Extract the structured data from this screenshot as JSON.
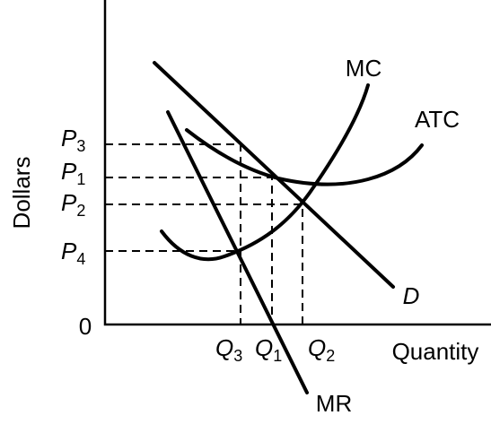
{
  "axes": {
    "y_label": "Dollars",
    "x_label": "Quantity",
    "origin": "0"
  },
  "curves": {
    "mc": "MC",
    "atc": "ATC",
    "demand": "D",
    "mr": "MR"
  },
  "prices": [
    {
      "letter": "P",
      "sub": "3"
    },
    {
      "letter": "P",
      "sub": "1"
    },
    {
      "letter": "P",
      "sub": "2"
    },
    {
      "letter": "P",
      "sub": "4"
    }
  ],
  "quantities": [
    {
      "letter": "Q",
      "sub": "3"
    },
    {
      "letter": "Q",
      "sub": "1"
    },
    {
      "letter": "Q",
      "sub": "2"
    }
  ]
}
